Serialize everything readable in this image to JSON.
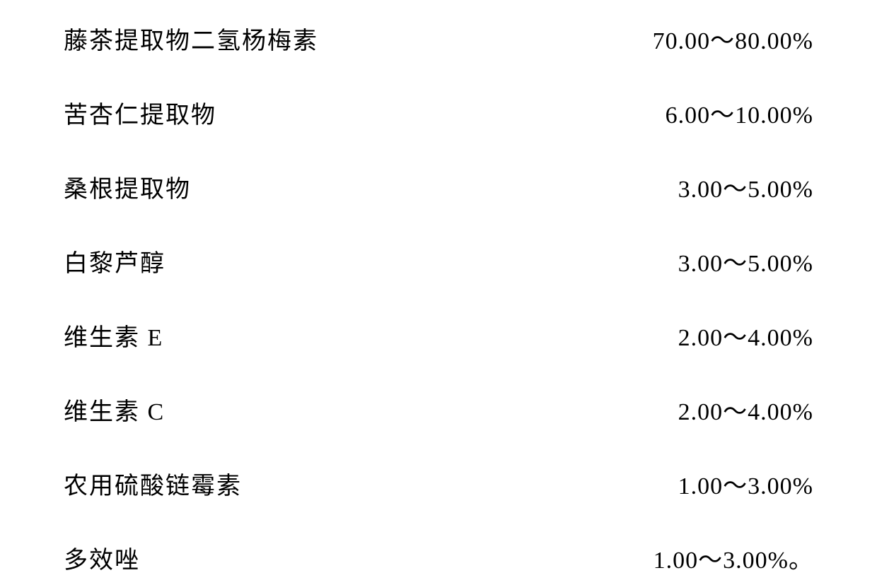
{
  "ingredients": [
    {
      "name": "藤茶提取物二氢杨梅素",
      "value": "70.00～80.00%"
    },
    {
      "name": "苦杏仁提取物",
      "value": "6.00～10.00%"
    },
    {
      "name": "桑根提取物",
      "value": "3.00～5.00%"
    },
    {
      "name": "白黎芦醇",
      "value": "3.00～5.00%"
    },
    {
      "name": "维生素 E",
      "value": "2.00～4.00%"
    },
    {
      "name": "维生素 C",
      "value": "2.00～4.00%"
    },
    {
      "name": "农用硫酸链霉素",
      "value": "1.00～3.00%"
    },
    {
      "name": "多效唑",
      "value": "1.00～3.00%。"
    }
  ],
  "styling": {
    "font_size": 34,
    "text_color": "#000000",
    "background_color": "#ffffff",
    "row_spacing": 56,
    "font_family_cjk": "SimSun",
    "font_family_latin": "Times New Roman"
  }
}
